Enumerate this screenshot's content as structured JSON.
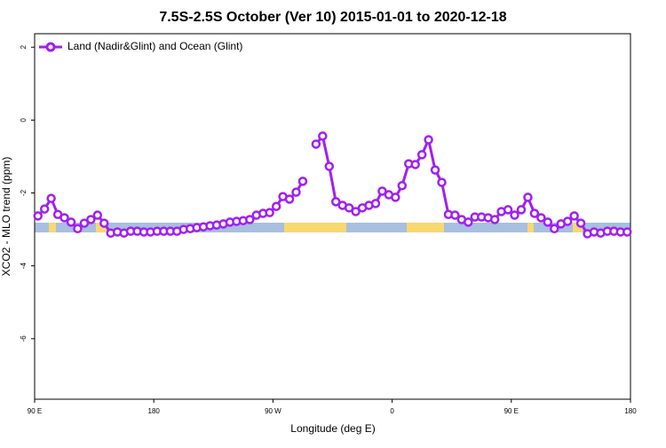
{
  "chart_data": {
    "type": "line",
    "title": "7.5S-2.5S October (Ver 10)   2015-01-01 to 2020-12-18",
    "xlabel": "Longitude (deg E)",
    "ylabel": "XCO2 - MLO trend (ppm)",
    "xlim": [
      90,
      540
    ],
    "ylim": [
      -7.66,
      2.37
    ],
    "xticks": [
      {
        "value": 90,
        "label": "90 E"
      },
      {
        "value": 180,
        "label": "180"
      },
      {
        "value": 270,
        "label": "90 W"
      },
      {
        "value": 360,
        "label": "0"
      },
      {
        "value": 450,
        "label": "90 E"
      },
      {
        "value": 540,
        "label": "180"
      }
    ],
    "yticks": [
      2,
      0,
      -2,
      -4,
      -6
    ],
    "legend": "upper left",
    "x": [
      92.5,
      97.5,
      102.5,
      107.5,
      112.5,
      117.5,
      122.5,
      127.5,
      132.5,
      137.5,
      142.5,
      147.5,
      152.5,
      157.5,
      162.5,
      167.5,
      172.5,
      177.5,
      182.5,
      187.5,
      192.5,
      197.5,
      202.5,
      207.5,
      212.5,
      217.5,
      222.5,
      227.5,
      232.5,
      237.5,
      242.5,
      247.5,
      252.5,
      257.5,
      262.5,
      267.5,
      272.5,
      277.5,
      282.5,
      287.5,
      292.5,
      297.5,
      302.5,
      307.5,
      312.5,
      317.5,
      322.5,
      327.5,
      332.5,
      337.5,
      342.5,
      347.5,
      352.5,
      357.5,
      362.5,
      367.5,
      372.5,
      377.5,
      382.5,
      387.5,
      392.5,
      397.5,
      402.5,
      407.5,
      412.5,
      417.5,
      422.5,
      427.5,
      432.5,
      437.5,
      442.5,
      447.5,
      452.5,
      457.5,
      462.5,
      467.5,
      472.5,
      477.5,
      482.5,
      487.5,
      492.5,
      497.5,
      502.5,
      507.5,
      512.5,
      517.5,
      522.5,
      527.5,
      532.5,
      537.5
    ],
    "series": [
      {
        "name": "Land (Nadir&Glint) and Ocean (Glint)",
        "color": "#a020f0",
        "values": [
          -2.63,
          -2.44,
          -2.15,
          -2.59,
          -2.68,
          -2.8,
          -2.98,
          -2.83,
          -2.73,
          -2.61,
          -2.83,
          -3.1,
          -3.07,
          -3.1,
          -3.05,
          -3.05,
          -3.07,
          -3.07,
          -3.05,
          -3.05,
          -3.05,
          -3.05,
          -3.0,
          -2.98,
          -2.95,
          -2.93,
          -2.9,
          -2.88,
          -2.85,
          -2.8,
          -2.78,
          -2.76,
          -2.73,
          -2.61,
          -2.56,
          -2.54,
          -2.37,
          -2.1,
          -2.17,
          -1.98,
          -1.68,
          null,
          -0.66,
          -0.44,
          -1.27,
          -2.24,
          -2.34,
          -2.41,
          -2.51,
          -2.41,
          -2.34,
          -2.29,
          -1.95,
          -2.05,
          -2.12,
          -1.8,
          -1.2,
          -1.22,
          -0.95,
          -0.54,
          -1.37,
          -1.71,
          -2.59,
          -2.61,
          -2.73,
          -2.8,
          -2.66,
          -2.66,
          -2.68,
          -2.73,
          -2.51,
          -2.46,
          -2.61,
          -2.46,
          -2.12,
          -2.56,
          -2.68,
          -2.8,
          -2.98,
          -2.85,
          -2.78,
          -2.63,
          -2.83,
          -3.12,
          -3.07,
          -3.1,
          -3.05,
          -3.05,
          -3.07,
          -3.07
        ]
      }
    ]
  }
}
